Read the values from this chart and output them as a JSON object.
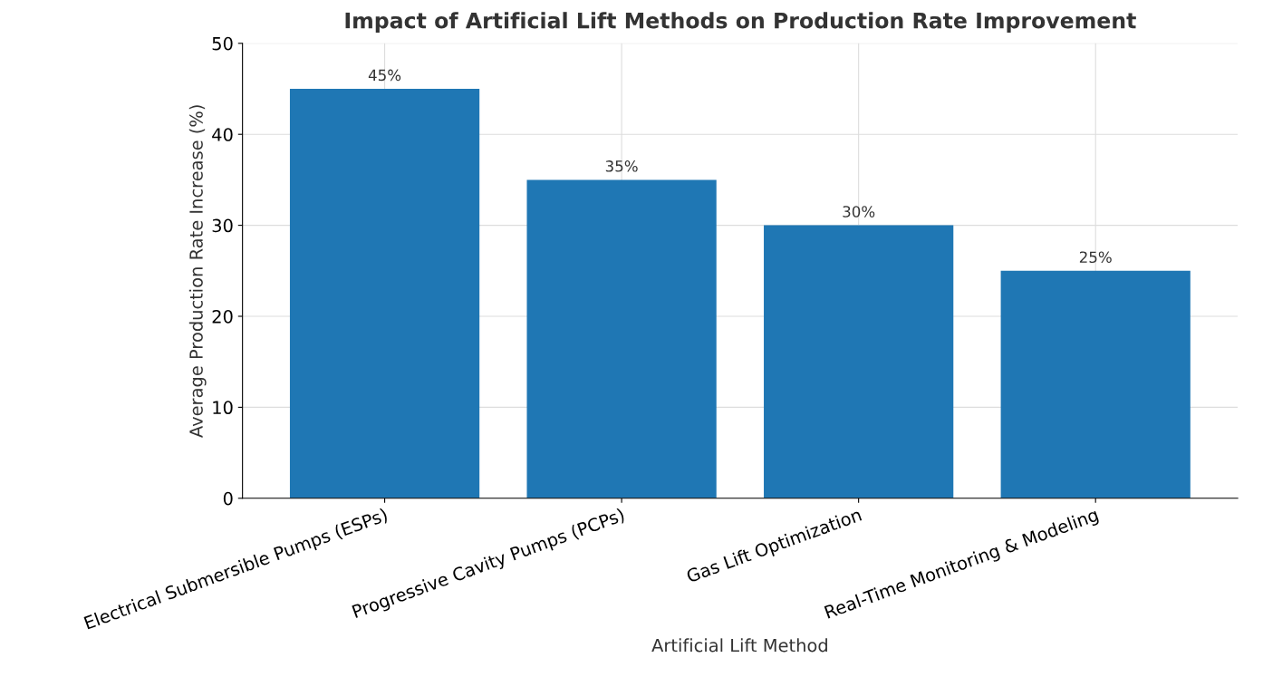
{
  "chart_data": {
    "type": "bar",
    "title": "Impact of Artificial Lift Methods on Production Rate Improvement",
    "xlabel": "Artificial Lift Method",
    "ylabel": "Average Production Rate Increase (%)",
    "categories": [
      "Electrical Submersible Pumps (ESPs)",
      "Progressive Cavity Pumps (PCPs)",
      "Gas Lift Optimization",
      "Real-Time Monitoring & Modeling"
    ],
    "values": [
      45,
      35,
      30,
      25
    ],
    "value_labels": [
      "45%",
      "35%",
      "30%",
      "25%"
    ],
    "color": "#1f77b4",
    "ylim": [
      0,
      50
    ],
    "yticks": [
      0,
      10,
      20,
      30,
      40,
      50
    ],
    "grid": true
  }
}
